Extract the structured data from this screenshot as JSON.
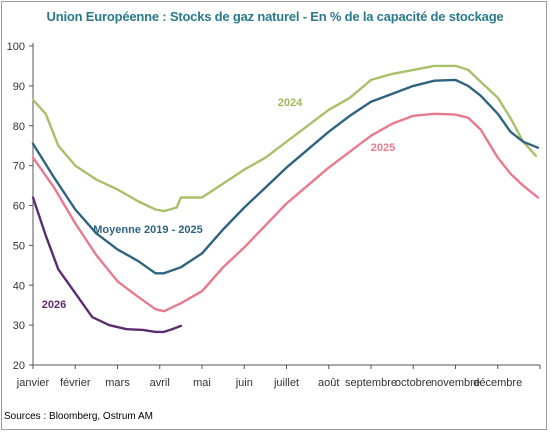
{
  "chart_data": {
    "type": "line",
    "title": "Union Européenne : Stocks de gaz naturel - En % de la capacité de stockage",
    "source": "Sources : Bloomberg, Ostrum AM",
    "months": [
      "janvier",
      "février",
      "mars",
      "avril",
      "mai",
      "juin",
      "juillet",
      "août",
      "septembre",
      "octobre",
      "novembre",
      "décembre"
    ],
    "ylim": [
      20,
      100
    ],
    "yticks": [
      20,
      30,
      40,
      50,
      60,
      70,
      80,
      90,
      100
    ],
    "grid": false,
    "series": [
      {
        "name": "2024",
        "color": "#a9c06a",
        "x": [
          0.0,
          0.3,
          0.6,
          1.0,
          1.5,
          2.0,
          2.5,
          2.9,
          3.1,
          3.4,
          3.5,
          3.75,
          4.0,
          4.5,
          5.0,
          5.5,
          6.0,
          6.5,
          7.0,
          7.5,
          8.0,
          8.5,
          9.0,
          9.5,
          10.0,
          10.3,
          10.6,
          11.0,
          11.3,
          11.6,
          11.9
        ],
        "values": [
          86.5,
          83,
          75,
          70,
          66.5,
          64,
          61,
          59,
          58.6,
          59.5,
          62,
          62,
          62,
          65.5,
          69,
          72,
          76,
          80,
          84,
          87,
          91.5,
          93,
          94,
          95,
          95,
          94,
          91,
          87,
          82,
          76,
          72.5
        ]
      },
      {
        "name": "Moyenne 2019 - 2025",
        "color": "#2f6480",
        "x": [
          0.0,
          0.5,
          1.0,
          1.5,
          2.0,
          2.5,
          2.9,
          3.1,
          3.5,
          4.0,
          4.5,
          5.0,
          5.5,
          6.0,
          6.5,
          7.0,
          7.5,
          8.0,
          8.5,
          9.0,
          9.5,
          10.0,
          10.3,
          10.6,
          11.0,
          11.3,
          11.6,
          11.95
        ],
        "values": [
          75.5,
          67,
          59,
          53,
          49,
          46,
          43,
          43,
          44.5,
          48,
          54,
          59.5,
          64.5,
          69.5,
          74,
          78.5,
          82.5,
          86,
          88,
          90,
          91.3,
          91.5,
          90,
          87.5,
          83,
          78.5,
          76,
          74.5
        ]
      },
      {
        "name": "2025",
        "color": "#e87a8e",
        "x": [
          0.0,
          0.5,
          1.0,
          1.5,
          2.0,
          2.5,
          2.9,
          3.1,
          3.5,
          4.0,
          4.5,
          5.0,
          5.5,
          6.0,
          6.5,
          7.0,
          7.5,
          8.0,
          8.5,
          9.0,
          9.5,
          10.0,
          10.3,
          10.6,
          11.0,
          11.3,
          11.6,
          11.95
        ],
        "values": [
          72,
          64.5,
          55.5,
          47.5,
          41,
          37,
          34,
          33.5,
          35.5,
          38.5,
          44.5,
          49.5,
          55,
          60.5,
          65,
          69.5,
          73.5,
          77.5,
          80.5,
          82.5,
          83,
          82.8,
          82,
          79,
          72,
          68,
          65,
          62
        ]
      },
      {
        "name": "2026",
        "color": "#5a2d6e",
        "x": [
          0.0,
          0.3,
          0.6,
          1.0,
          1.4,
          1.8,
          2.2,
          2.6,
          2.9,
          3.1,
          3.3,
          3.5
        ],
        "values": [
          62,
          52.5,
          44,
          38,
          32,
          30,
          29,
          28.8,
          28.3,
          28.3,
          29,
          29.8
        ]
      }
    ],
    "labels": [
      {
        "text": "2024",
        "series": "2024"
      },
      {
        "text": "Moyenne 2019 - 2025",
        "series": "Moyenne 2019 - 2025"
      },
      {
        "text": "2025",
        "series": "2025"
      },
      {
        "text": "2026",
        "series": "2026"
      }
    ]
  }
}
